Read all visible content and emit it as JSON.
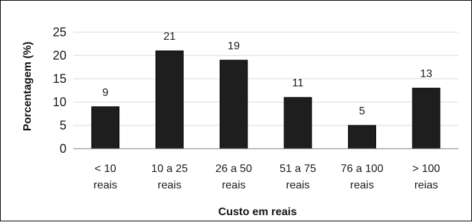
{
  "chart_data": {
    "type": "bar",
    "categories": [
      [
        "< 10",
        "reais"
      ],
      [
        "10 a 25",
        "reais"
      ],
      [
        "26 a 50",
        "reais"
      ],
      [
        "51 a 75",
        "reais"
      ],
      [
        "76 a 100",
        "reais"
      ],
      [
        "> 100",
        "reias"
      ]
    ],
    "values": [
      9,
      21,
      19,
      11,
      5,
      13
    ],
    "data_labels": [
      "9",
      "21",
      "19",
      "11",
      "5",
      "13"
    ],
    "xlabel": "Custo em reais",
    "ylabel": "Porcentagem (%)",
    "ylim": [
      0,
      25
    ],
    "yticks": [
      "0",
      "5",
      "10",
      "15",
      "20",
      "25"
    ],
    "grid": true,
    "bar_color": "#1e1e1e",
    "grid_color": "#d9d9d9"
  }
}
